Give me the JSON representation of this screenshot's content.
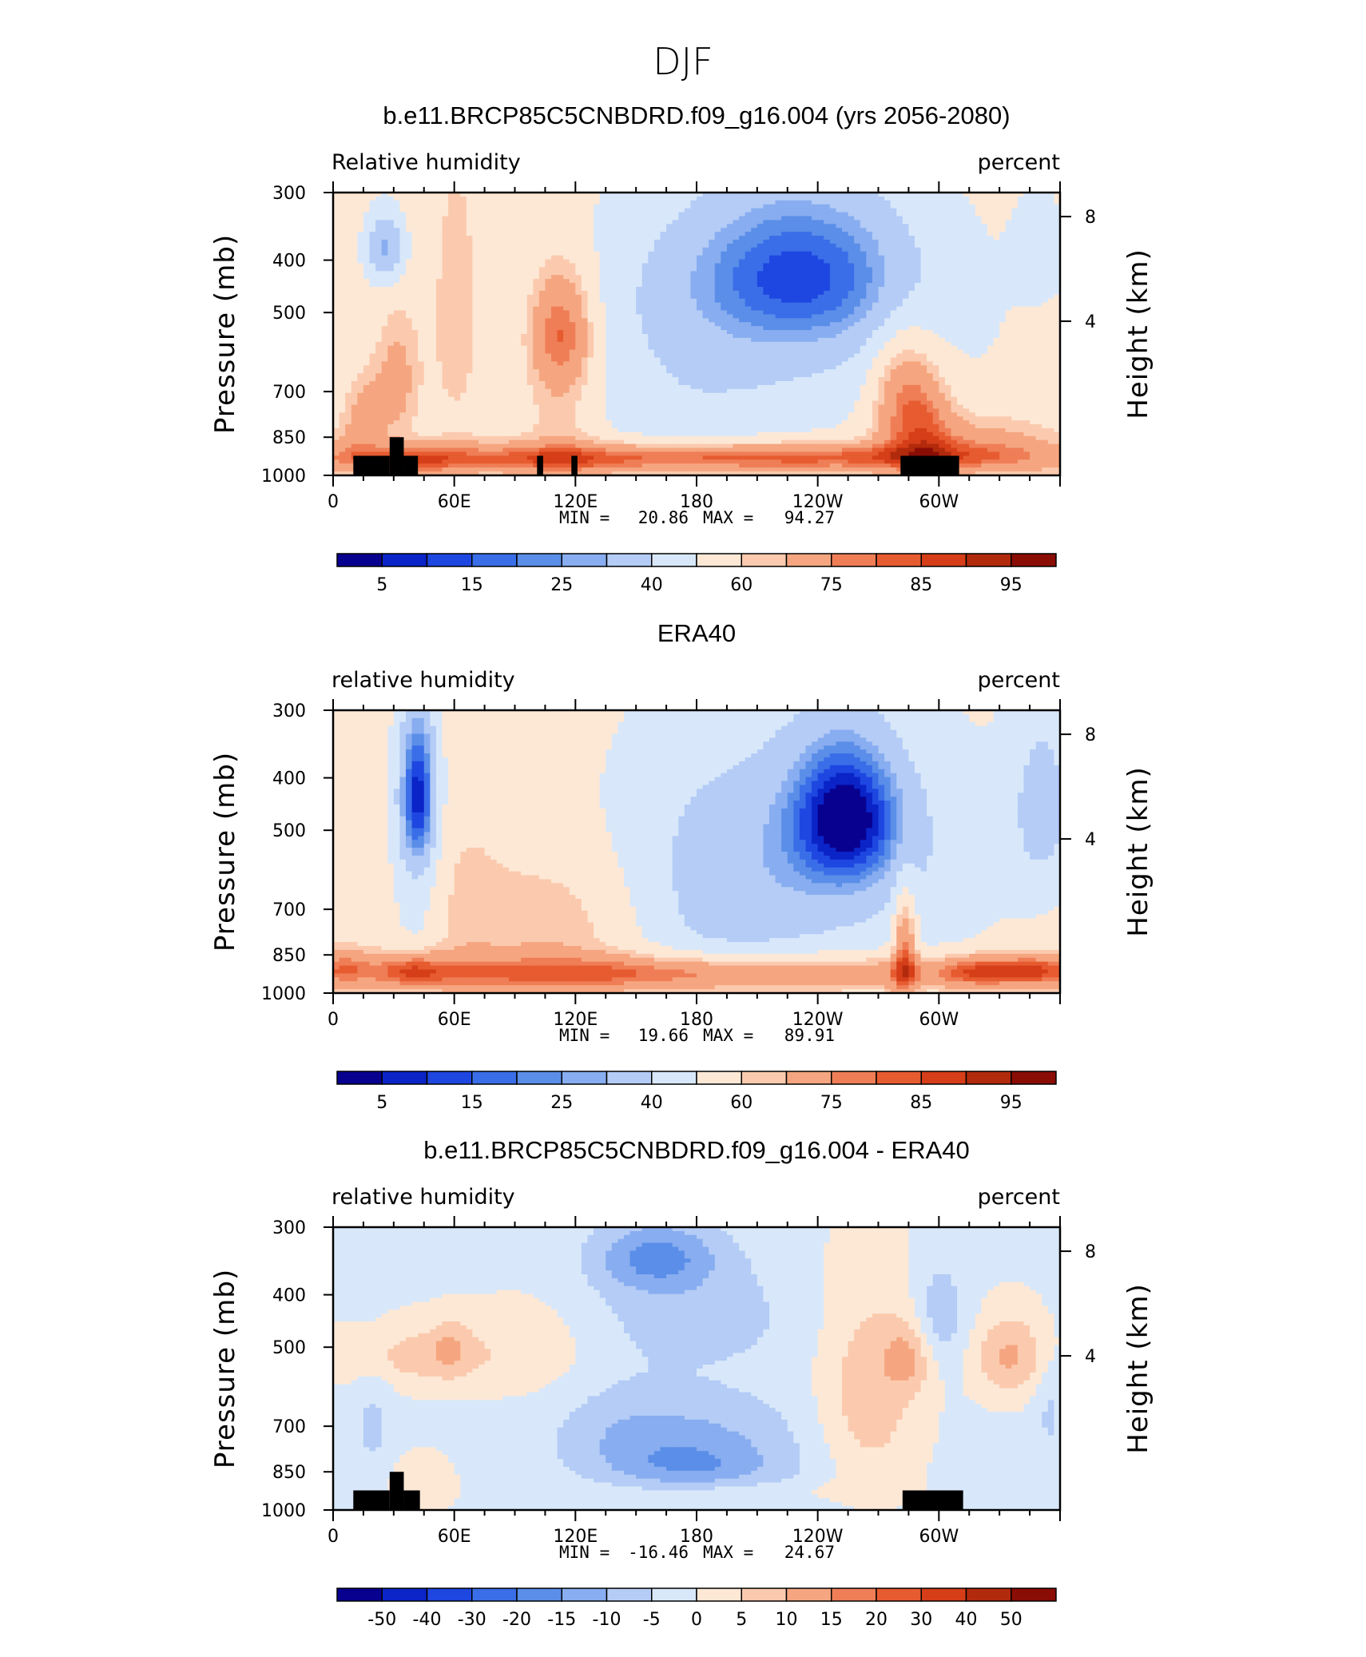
{
  "figure": {
    "title": "DJF"
  },
  "colormap_diverging": [
    "#08008f",
    "#0a24c8",
    "#1e46e0",
    "#3a6ee8",
    "#5a8ee8",
    "#88adf0",
    "#b4ccf6",
    "#d8e8fa",
    "#fde8d6",
    "#fbcaae",
    "#f5a680",
    "#ef7e56",
    "#e75b30",
    "#d53e18",
    "#b22a0c",
    "#8a0d05"
  ],
  "colorbars": {
    "rh": [
      "5",
      "15",
      "25",
      "40",
      "60",
      "75",
      "85",
      "95"
    ],
    "diff": [
      "-50",
      "-40",
      "-30",
      "-20",
      "-15",
      "-10",
      "-5",
      "0",
      "5",
      "10",
      "15",
      "20",
      "30",
      "40",
      "50"
    ]
  },
  "chart_data": [
    {
      "type": "heatmap",
      "title": "b.e11.BRCP85C5CNBDRD.f09_g16.004 (yrs 2056-2080)",
      "left_label": "Relative humidity",
      "right_label": "percent",
      "ylabel": "Pressure (mb)",
      "ylabel_right": "Height (km)",
      "x_ticks": [
        "0",
        "60E",
        "120E",
        "180",
        "120W",
        "60W"
      ],
      "y_ticks": [
        "300",
        "400",
        "500",
        "700",
        "850",
        "1000"
      ],
      "y_ticks_right": [
        "8",
        "4"
      ],
      "xlim": [
        0,
        360
      ],
      "ylim": [
        1000,
        300
      ],
      "min_label": "MIN =",
      "min_value": "20.86",
      "max_label": "MAX =",
      "max_value": "94.27",
      "colorbar": "rh",
      "topography": [
        [
          10,
          28,
          920
        ],
        [
          28,
          35,
          850
        ],
        [
          35,
          42,
          920
        ],
        [
          101,
          104,
          920
        ],
        [
          118,
          121,
          920
        ],
        [
          281,
          310,
          920
        ]
      ]
    },
    {
      "type": "heatmap",
      "title": "ERA40",
      "left_label": "relative humidity",
      "right_label": "percent",
      "ylabel": "Pressure (mb)",
      "ylabel_right": "Height (km)",
      "x_ticks": [
        "0",
        "60E",
        "120E",
        "180",
        "120W",
        "60W"
      ],
      "y_ticks": [
        "300",
        "400",
        "500",
        "700",
        "850",
        "1000"
      ],
      "y_ticks_right": [
        "8",
        "4"
      ],
      "xlim": [
        0,
        360
      ],
      "ylim": [
        1000,
        300
      ],
      "min_label": "MIN =",
      "min_value": "19.66",
      "max_label": "MAX =",
      "max_value": "89.91",
      "colorbar": "rh",
      "topography": []
    },
    {
      "type": "heatmap",
      "title": "b.e11.BRCP85C5CNBDRD.f09_g16.004 - ERA40",
      "left_label": "relative humidity",
      "right_label": "percent",
      "ylabel": "Pressure (mb)",
      "ylabel_right": "Height (km)",
      "x_ticks": [
        "0",
        "60E",
        "120E",
        "180",
        "120W",
        "60W"
      ],
      "y_ticks": [
        "300",
        "400",
        "500",
        "700",
        "850",
        "1000"
      ],
      "y_ticks_right": [
        "8",
        "4"
      ],
      "xlim": [
        0,
        360
      ],
      "ylim": [
        1000,
        300
      ],
      "min_label": "MIN =",
      "min_value": "-16.46",
      "max_label": "MAX =",
      "max_value": "24.67",
      "colorbar": "diff",
      "topography": [
        [
          10,
          28,
          920
        ],
        [
          28,
          35,
          850
        ],
        [
          35,
          43,
          920
        ],
        [
          282,
          312,
          920
        ]
      ]
    }
  ]
}
